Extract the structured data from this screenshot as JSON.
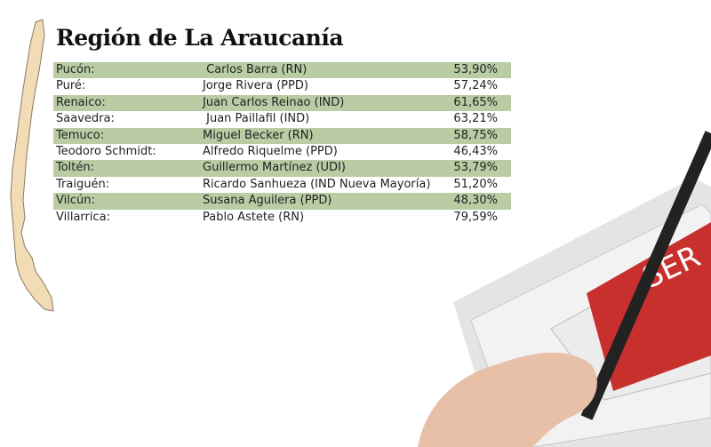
{
  "title": "Región de La Araucanía",
  "table": {
    "rows": [
      [
        "Pucón:",
        " Carlos Barra (RN)",
        "53,90%"
      ],
      [
        "Puré:",
        "Jorge Rivera (PPD)",
        "57,24%"
      ],
      [
        "Renaico:",
        "Juan Carlos Reinao (IND)",
        "61,65%"
      ],
      [
        "Saavedra:",
        " Juan Paillafil (IND)",
        "63,21%"
      ],
      [
        "Temuco:",
        "Miguel Becker (RN)",
        "58,75%"
      ],
      [
        "Teodoro Schmidt:",
        "Alfredo Riquelme (PPD)",
        "46,43%"
      ],
      [
        "Toltén:",
        "Guillermo Martínez (UDI)",
        "53,79%"
      ],
      [
        "Traiguén:",
        "Ricardo Sanhueza (IND Nueva Mayoría)",
        "51,20%"
      ],
      [
        "Vilcún:",
        "Susana Aguilera (PPD)",
        "48,30%"
      ],
      [
        "Villarrica:",
        "Pablo Astete (RN)",
        "79,59%"
      ]
    ]
  }
}
